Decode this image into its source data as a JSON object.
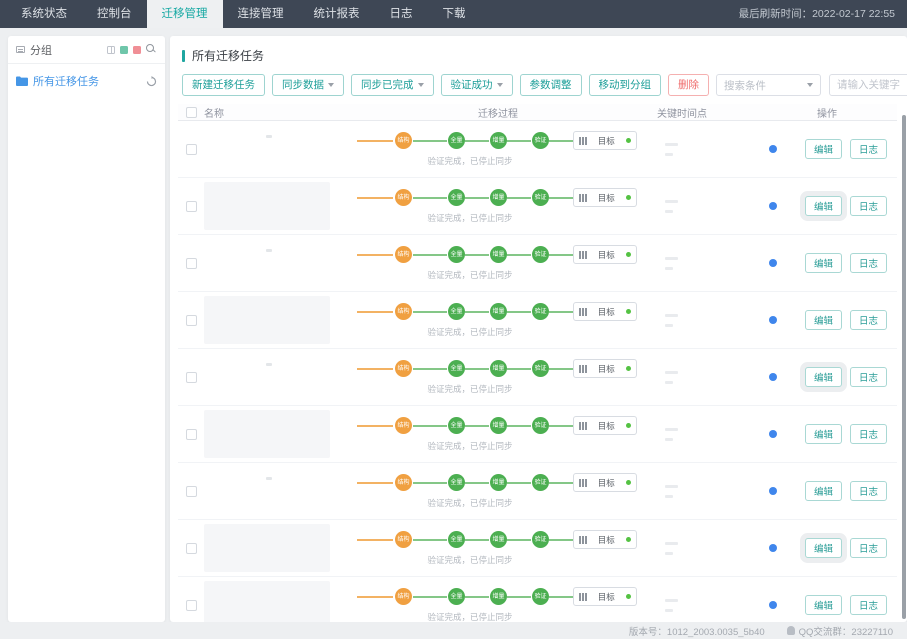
{
  "colors": {
    "accent": "#1fa6a0",
    "danger": "#ef6b6b",
    "node_orange": "#f0a041",
    "node_green": "#4caf51",
    "info_blue": "#3f86ec",
    "nav_bg": "#3e4755"
  },
  "topnav": {
    "tabs": [
      {
        "label": "系统状态",
        "active": false
      },
      {
        "label": "控制台",
        "active": false
      },
      {
        "label": "迁移管理",
        "active": true
      },
      {
        "label": "连接管理",
        "active": false
      },
      {
        "label": "统计报表",
        "active": false
      },
      {
        "label": "日志",
        "active": false
      },
      {
        "label": "下载",
        "active": false
      }
    ],
    "refresh_label": "最后刷新时间：2022-02-17 22:55"
  },
  "sidebar": {
    "title": "分组",
    "tree": {
      "all_tasks_label": "所有迁移任务"
    }
  },
  "main": {
    "title": "所有迁移任务",
    "toolbar": {
      "buttons": [
        {
          "label": "新建迁移任务",
          "type": "primary",
          "dropdown": false
        },
        {
          "label": "同步数据",
          "type": "default",
          "dropdown": true
        },
        {
          "label": "同步已完成",
          "type": "default",
          "dropdown": true
        },
        {
          "label": "验证成功",
          "type": "default",
          "dropdown": true
        },
        {
          "label": "参数调整",
          "type": "default",
          "dropdown": false
        },
        {
          "label": "移动到分组",
          "type": "default",
          "dropdown": false
        },
        {
          "label": "删除",
          "type": "danger",
          "dropdown": false
        }
      ],
      "search_select_value": "搜索条件",
      "search_placeholder": "请输入关键字"
    },
    "table": {
      "columns": {
        "name": "名称",
        "process": "迁移过程",
        "key_points": "关键时间点",
        "ops": "操作"
      },
      "flow": {
        "stages": [
          "结构",
          "全量",
          "增量",
          "验证"
        ],
        "target_label": "目标",
        "status_text": "验证完成，已停止同步"
      },
      "ops": {
        "edit": "编辑",
        "log": "日志"
      },
      "rows": [
        {
          "name_redacted": false,
          "ops_highlight": false
        },
        {
          "name_redacted": true,
          "ops_highlight": true
        },
        {
          "name_redacted": false,
          "ops_highlight": false
        },
        {
          "name_redacted": true,
          "ops_highlight": false
        },
        {
          "name_redacted": false,
          "ops_highlight": true
        },
        {
          "name_redacted": true,
          "ops_highlight": false
        },
        {
          "name_redacted": false,
          "ops_highlight": false
        },
        {
          "name_redacted": true,
          "ops_highlight": true
        },
        {
          "name_redacted": true,
          "ops_highlight": false
        }
      ]
    }
  },
  "footer": {
    "version": "版本号：1012_2003.0035_5b40",
    "qq_group": "QQ交流群：23227110"
  }
}
